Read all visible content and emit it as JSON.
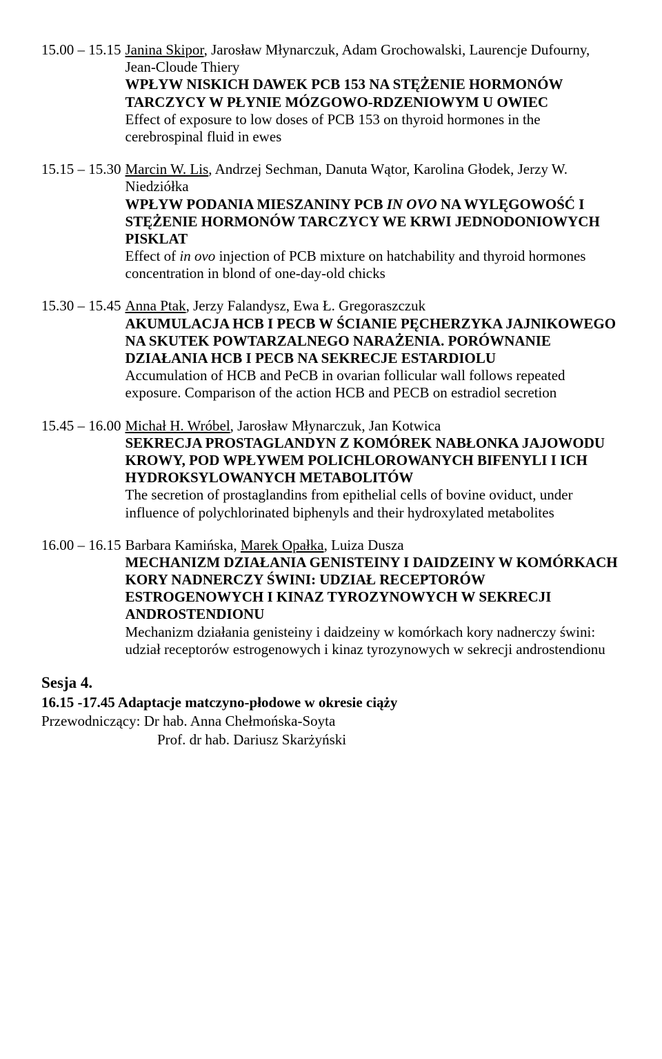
{
  "entries": [
    {
      "time": "15.00 – 15.15",
      "authors_pre": "",
      "presenter": "Janina Skipor",
      "authors_post": ", Jarosław Młynarczuk, Adam Grochowalski, Laurencje Dufourny, Jean-Cloude Thiery",
      "title_pl": "WPŁYW NISKICH DAWEK PCB 153 NA STĘŻENIE HORMONÓW TARCZYCY W PŁYNIE MÓZGOWO-RDZENIOWYM U OWIEC",
      "title_en": "Effect of exposure to low doses of PCB 153 on thyroid hormones in the cerebrospinal fluid in ewes"
    },
    {
      "time": "15.15 – 15.30",
      "authors_pre": "",
      "presenter": "Marcin W. Lis",
      "authors_post": ", Andrzej Sechman, Danuta Wątor, Karolina Głodek, Jerzy W. Niedziółka",
      "title_pl_parts": [
        "WPŁYW PODANIA MIESZANINY PCB ",
        "IN OVO",
        " NA WYLĘGOWOŚĆ I STĘŻENIE HORMONÓW TARCZYCY WE KRWI JEDNODONIOWYCH PISKLAT"
      ],
      "title_en_parts": [
        "Effect of ",
        "in ovo",
        " injection of PCB mixture on hatchability and thyroid hormones concentration in blond of one-day-old chicks"
      ]
    },
    {
      "time": "15.30 – 15.45",
      "authors_pre": "",
      "presenter": "Anna Ptak",
      "authors_post": ", Jerzy Falandysz, Ewa Ł. Gregoraszczuk",
      "title_pl": "AKUMULACJA HCB I PECB W ŚCIANIE PĘCHERZYKA JAJNIKOWEGO NA SKUTEK POWTARZALNEGO NARAŻENIA. PORÓWNANIE DZIAŁANIA HCB I PECB NA SEKRECJE ESTARDIOLU",
      "title_en": "Accumulation of HCB and PeCB in ovarian follicular wall follows repeated exposure. Comparison of the action HCB and PECB on estradiol secretion"
    },
    {
      "time": "15.45 – 16.00",
      "authors_pre": "",
      "presenter": "Michał H. Wróbel",
      "authors_post": ", Jarosław Młynarczuk, Jan Kotwica",
      "title_pl": "SEKRECJA PROSTAGLANDYN Z KOMÓREK NABŁONKA JAJOWODU KROWY, POD WPŁYWEM POLICHLOROWANYCH BIFENYLI I ICH HYDROKSYLOWANYCH METABOLITÓW",
      "title_en": "The secretion of prostaglandins from epithelial cells of bovine oviduct, under influence of polychlorinated biphenyls and their hydroxylated metabolites"
    },
    {
      "time": "16.00 – 16.15",
      "authors_pre": "Barbara Kamińska, ",
      "presenter": "Marek Opałka",
      "authors_post": ", Luiza Dusza",
      "title_pl": "MECHANIZM DZIAŁANIA GENISTEINY I DAIDZEINY W KOMÓRKACH KORY NADNERCZY ŚWINI: UDZIAŁ RECEPTORÓW ESTROGENOWYCH I KINAZ TYROZYNOWYCH W SEKRECJI ANDROSTENDIONU",
      "title_en": "Mechanizm działania genisteiny i daidzeiny w komórkach kory nadnerczy świni: udział receptorów estrogenowych i kinaz tyrozynowych w sekrecji androstendionu"
    }
  ],
  "session": {
    "label": "Sesja 4.",
    "sub": "16.15 -17.45 Adaptacje matczyno-płodowe w okresie ciąży",
    "chair_label": "Przewodniczący: ",
    "chair1": "Dr hab. Anna Chełmońska-Soyta",
    "chair2": "Prof. dr hab. Dariusz Skarżyński"
  }
}
